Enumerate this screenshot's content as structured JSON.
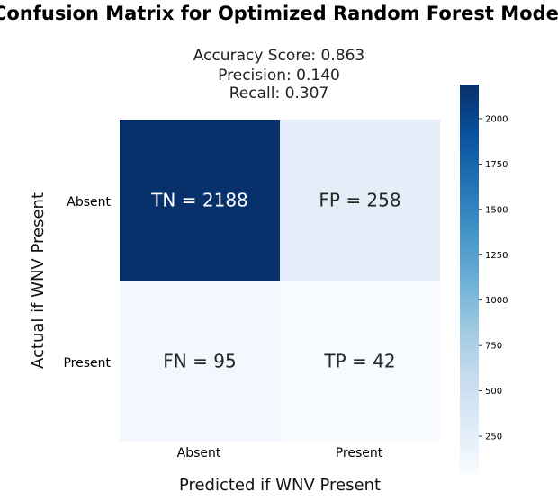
{
  "chart_data": {
    "type": "heatmap",
    "title": "Confusion Matrix for Optimized Random Forest Model",
    "subtitle_lines": [
      "Accuracy Score: 0.863",
      "Precision: 0.140",
      "Recall: 0.307"
    ],
    "xlabel": "Predicted if WNV Present",
    "ylabel": "Actual if WNV Present",
    "x_categories": [
      "Absent",
      "Present"
    ],
    "y_categories": [
      "Absent",
      "Present"
    ],
    "values": [
      [
        2188,
        258
      ],
      [
        95,
        42
      ]
    ],
    "annotations": [
      [
        "TN = 2188",
        "FP = 258"
      ],
      [
        "FN = 95",
        "TP = 42"
      ]
    ],
    "colormap": "Blues",
    "colorbar": {
      "vmin": 42,
      "vmax": 2188,
      "ticks": [
        250,
        500,
        750,
        1000,
        1250,
        1500,
        1750,
        2000
      ]
    },
    "colors": {
      "low": "#f7fbff",
      "high": "#08306b",
      "light_text": "#ffffff",
      "dark_text": "#262626"
    }
  }
}
